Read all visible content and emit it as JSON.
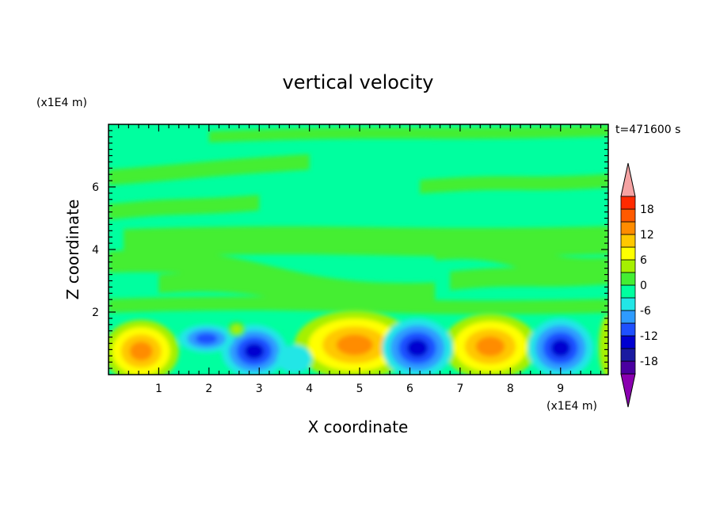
{
  "chart_data": {
    "type": "heatmap",
    "title": "vertical velocity",
    "xlabel": "X coordinate",
    "ylabel": "Z coordinate",
    "x_unit": "(x1E4 m)",
    "y_unit": "(x1E4 m)",
    "time_label": "t=471600 s",
    "xlim": [
      0,
      9.95
    ],
    "ylim": [
      0,
      8
    ],
    "x_ticks": [
      "1",
      "2",
      "3",
      "4",
      "5",
      "6",
      "7",
      "8",
      "9"
    ],
    "y_ticks": [
      "2",
      "4",
      "6"
    ],
    "colorbar": {
      "levels": [
        -21,
        -18,
        -15,
        -12,
        -9,
        -6,
        -3,
        0,
        3,
        6,
        9,
        12,
        15,
        18,
        21
      ],
      "tick_labels": [
        "18",
        "12",
        "6",
        "0",
        "-6",
        "-12",
        "-18"
      ],
      "colors": [
        "#4a00a0",
        "#1a1aa0",
        "#0000d0",
        "#1e50ff",
        "#2e9bff",
        "#22e6e6",
        "#00ff9f",
        "#44ee33",
        "#a5f000",
        "#ffff00",
        "#ffc800",
        "#ff8c00",
        "#ff5a00",
        "#ff2a00"
      ],
      "over_color": "#f5a3a3",
      "under_color": "#8a00b0"
    },
    "features": [
      {
        "kind": "updraft",
        "x": 0.65,
        "z": 0.65,
        "max": 12
      },
      {
        "kind": "downdraft",
        "x": 1.95,
        "z": 1.1,
        "min": -9
      },
      {
        "kind": "downdraft",
        "x": 2.9,
        "z": 0.7,
        "min": -15
      },
      {
        "kind": "updraft",
        "x": 4.9,
        "z": 0.95,
        "max": 12
      },
      {
        "kind": "downdraft",
        "x": 6.15,
        "z": 0.8,
        "min": -15
      },
      {
        "kind": "updraft",
        "x": 7.6,
        "z": 0.85,
        "max": 12
      },
      {
        "kind": "downdraft",
        "x": 9.0,
        "z": 0.8,
        "min": -15
      }
    ]
  }
}
